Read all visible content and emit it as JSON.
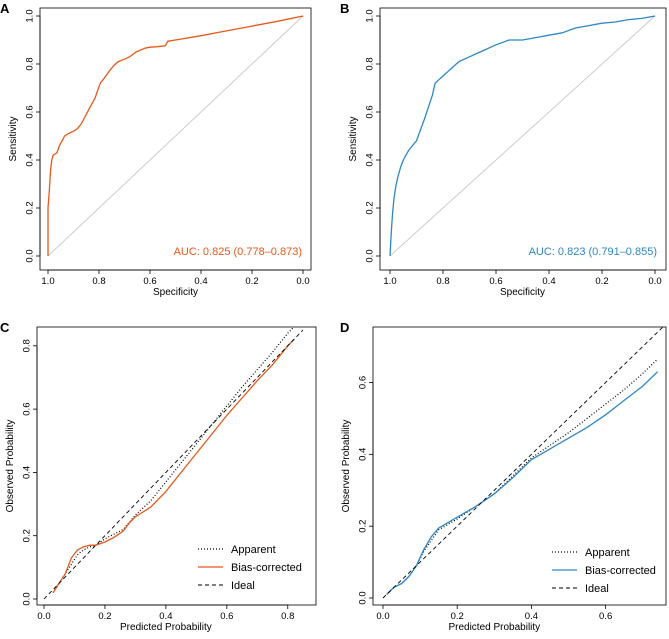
{
  "colors": {
    "orange": "#e8581c",
    "blue": "#2f87c8",
    "diag": "#c8c8c8",
    "ink": "#000000"
  },
  "chart_data": [
    {
      "id": "A",
      "type": "line",
      "subtype": "roc",
      "panel_label": "A",
      "xlabel": "Specificity",
      "ylabel": "Sensitivity",
      "xlim": [
        1.0,
        0.0
      ],
      "ylim": [
        0.0,
        1.0
      ],
      "xticks": [
        "1.0",
        "0.8",
        "0.6",
        "0.4",
        "0.2",
        "0.0"
      ],
      "yticks": [
        "0.0",
        "0.2",
        "0.4",
        "0.6",
        "0.8",
        "1.0"
      ],
      "color": "orange",
      "annotation": "AUC: 0.825 (0.778–0.873)",
      "series": [
        {
          "name": "ROC",
          "specificity": [
            1.0,
            1.0,
            0.995,
            0.99,
            0.985,
            0.98,
            0.965,
            0.955,
            0.94,
            0.935,
            0.92,
            0.9,
            0.885,
            0.87,
            0.855,
            0.84,
            0.83,
            0.815,
            0.805,
            0.795,
            0.78,
            0.76,
            0.745,
            0.725,
            0.7,
            0.68,
            0.655,
            0.62,
            0.6,
            0.57,
            0.54,
            0.53,
            0.5,
            0.4,
            0.3,
            0.2,
            0.1,
            0.0
          ],
          "sensitivity": [
            0.0,
            0.2,
            0.27,
            0.36,
            0.4,
            0.42,
            0.43,
            0.46,
            0.49,
            0.5,
            0.51,
            0.52,
            0.53,
            0.55,
            0.58,
            0.61,
            0.63,
            0.66,
            0.69,
            0.72,
            0.74,
            0.77,
            0.79,
            0.81,
            0.82,
            0.83,
            0.85,
            0.866,
            0.87,
            0.872,
            0.876,
            0.895,
            0.9,
            0.918,
            0.938,
            0.958,
            0.978,
            1.0
          ]
        }
      ],
      "reference": {
        "name": "diagonal",
        "specificity": [
          1.0,
          0.0
        ],
        "sensitivity": [
          0.0,
          1.0
        ]
      }
    },
    {
      "id": "B",
      "type": "line",
      "subtype": "roc",
      "panel_label": "B",
      "xlabel": "Specificity",
      "ylabel": "Sensitivity",
      "xlim": [
        1.0,
        0.0
      ],
      "ylim": [
        0.0,
        1.0
      ],
      "xticks": [
        "1.0",
        "0.8",
        "0.6",
        "0.4",
        "0.2",
        "0.0"
      ],
      "yticks": [
        "0.0",
        "0.2",
        "0.4",
        "0.6",
        "0.8",
        "1.0"
      ],
      "color": "blue",
      "annotation": "AUC: 0.823 (0.791–0.855)",
      "series": [
        {
          "name": "ROC",
          "specificity": [
            1.0,
            0.995,
            0.99,
            0.985,
            0.978,
            0.97,
            0.96,
            0.95,
            0.94,
            0.93,
            0.915,
            0.9,
            0.89,
            0.88,
            0.87,
            0.855,
            0.84,
            0.83,
            0.82,
            0.8,
            0.78,
            0.76,
            0.74,
            0.72,
            0.7,
            0.68,
            0.66,
            0.64,
            0.62,
            0.6,
            0.55,
            0.5,
            0.45,
            0.4,
            0.35,
            0.3,
            0.25,
            0.2,
            0.15,
            0.1,
            0.05,
            0.0
          ],
          "sensitivity": [
            0.0,
            0.1,
            0.18,
            0.24,
            0.29,
            0.33,
            0.37,
            0.4,
            0.42,
            0.44,
            0.46,
            0.48,
            0.51,
            0.54,
            0.57,
            0.62,
            0.67,
            0.72,
            0.73,
            0.75,
            0.77,
            0.79,
            0.81,
            0.82,
            0.83,
            0.84,
            0.85,
            0.86,
            0.87,
            0.88,
            0.9,
            0.9,
            0.91,
            0.92,
            0.93,
            0.95,
            0.96,
            0.97,
            0.975,
            0.985,
            0.99,
            1.0
          ]
        }
      ],
      "reference": {
        "name": "diagonal",
        "specificity": [
          1.0,
          0.0
        ],
        "sensitivity": [
          0.0,
          1.0
        ]
      }
    },
    {
      "id": "C",
      "type": "line",
      "subtype": "calibration",
      "panel_label": "C",
      "xlabel": "Predicted Probability",
      "ylabel": "Observed Probability",
      "xlim": [
        0.0,
        0.85
      ],
      "ylim": [
        0.0,
        0.85
      ],
      "xticks": [
        "0.0",
        "0.2",
        "0.4",
        "0.6",
        "0.8"
      ],
      "yticks": [
        "0.0",
        "0.2",
        "0.4",
        "0.6",
        "0.8"
      ],
      "color": "orange",
      "legend": {
        "position": "bottom-right",
        "entries": [
          {
            "label": "Apparent",
            "style": "dotted"
          },
          {
            "label": "Bias-corrected",
            "style": "solid"
          },
          {
            "label": "Ideal",
            "style": "dashed"
          }
        ]
      },
      "series": [
        {
          "name": "Apparent",
          "x": [
            0.03,
            0.05,
            0.07,
            0.09,
            0.11,
            0.13,
            0.15,
            0.17,
            0.2,
            0.23,
            0.26,
            0.3,
            0.35,
            0.4,
            0.45,
            0.5,
            0.55,
            0.6,
            0.65,
            0.7,
            0.75,
            0.8,
            0.82
          ],
          "y": [
            0.02,
            0.05,
            0.08,
            0.11,
            0.14,
            0.155,
            0.165,
            0.17,
            0.19,
            0.205,
            0.22,
            0.265,
            0.31,
            0.37,
            0.43,
            0.49,
            0.55,
            0.61,
            0.67,
            0.725,
            0.78,
            0.84,
            0.86
          ]
        },
        {
          "name": "Bias-corrected",
          "x": [
            0.03,
            0.05,
            0.07,
            0.09,
            0.11,
            0.13,
            0.15,
            0.17,
            0.2,
            0.23,
            0.26,
            0.28,
            0.3,
            0.35,
            0.4,
            0.45,
            0.5,
            0.55,
            0.6,
            0.65,
            0.7,
            0.75,
            0.8,
            0.82
          ],
          "y": [
            0.02,
            0.05,
            0.08,
            0.13,
            0.155,
            0.165,
            0.17,
            0.17,
            0.18,
            0.195,
            0.215,
            0.24,
            0.26,
            0.29,
            0.34,
            0.4,
            0.46,
            0.52,
            0.58,
            0.635,
            0.69,
            0.74,
            0.8,
            0.82
          ]
        },
        {
          "name": "Ideal",
          "x": [
            0.0,
            0.85
          ],
          "y": [
            0.0,
            0.85
          ]
        }
      ]
    },
    {
      "id": "D",
      "type": "line",
      "subtype": "calibration",
      "panel_label": "D",
      "xlabel": "Predicted Probability",
      "ylabel": "Observed Probability",
      "xlim": [
        0.0,
        0.76
      ],
      "ylim": [
        0.0,
        0.76
      ],
      "xticks": [
        "0.0",
        "0.2",
        "0.4",
        "0.6"
      ],
      "yticks": [
        "0.0",
        "0.2",
        "0.4",
        "0.6"
      ],
      "color": "blue",
      "legend": {
        "position": "bottom-right",
        "entries": [
          {
            "label": "Apparent",
            "style": "dotted"
          },
          {
            "label": "Bias-corrected",
            "style": "solid"
          },
          {
            "label": "Ideal",
            "style": "dashed"
          }
        ]
      },
      "series": [
        {
          "name": "Apparent",
          "x": [
            0.01,
            0.03,
            0.05,
            0.07,
            0.09,
            0.11,
            0.13,
            0.15,
            0.2,
            0.25,
            0.3,
            0.35,
            0.4,
            0.45,
            0.5,
            0.55,
            0.6,
            0.65,
            0.7,
            0.74
          ],
          "y": [
            0.01,
            0.03,
            0.04,
            0.06,
            0.09,
            0.13,
            0.16,
            0.19,
            0.22,
            0.255,
            0.29,
            0.34,
            0.39,
            0.425,
            0.46,
            0.5,
            0.54,
            0.58,
            0.625,
            0.665
          ]
        },
        {
          "name": "Bias-corrected",
          "x": [
            0.01,
            0.03,
            0.05,
            0.07,
            0.09,
            0.11,
            0.13,
            0.15,
            0.2,
            0.25,
            0.3,
            0.35,
            0.4,
            0.45,
            0.5,
            0.55,
            0.6,
            0.65,
            0.7,
            0.74
          ],
          "y": [
            0.01,
            0.03,
            0.04,
            0.06,
            0.09,
            0.135,
            0.17,
            0.195,
            0.225,
            0.255,
            0.29,
            0.335,
            0.385,
            0.415,
            0.445,
            0.475,
            0.51,
            0.55,
            0.59,
            0.63
          ]
        },
        {
          "name": "Ideal",
          "x": [
            0.0,
            0.76
          ],
          "y": [
            0.0,
            0.76
          ]
        }
      ]
    }
  ]
}
